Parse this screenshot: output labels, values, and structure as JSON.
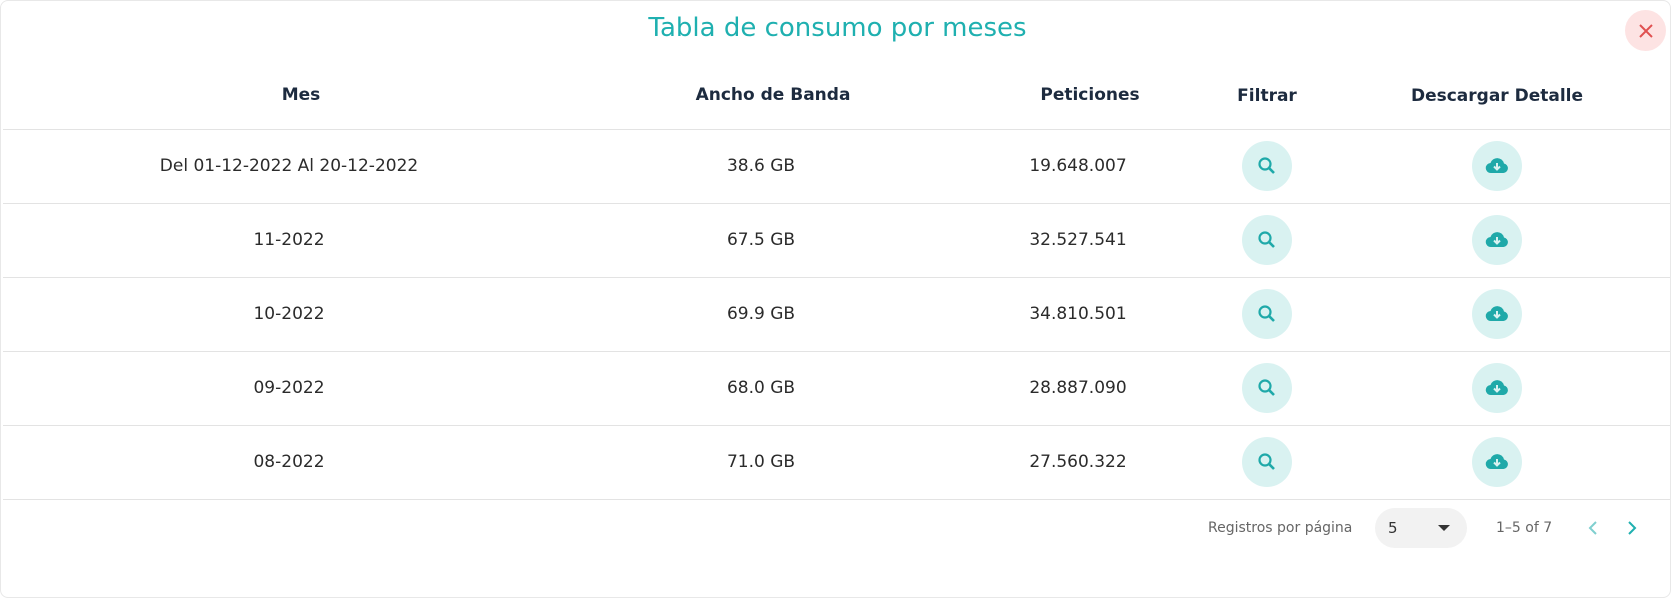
{
  "title": "Tabla de consumo por meses",
  "table": {
    "headers": [
      "Mes",
      "Ancho de Banda",
      "Peticiones",
      "Filtrar",
      "Descargar Detalle"
    ],
    "rows": [
      [
        "Del 01-12-2022 Al 20-12-2022",
        "38.6 GB",
        "19.648.007"
      ],
      [
        "11-2022",
        "67.5 GB",
        "32.527.541"
      ],
      [
        "10-2022",
        "69.9 GB",
        "34.810.501"
      ],
      [
        "09-2022",
        "68.0 GB",
        "28.887.090"
      ],
      [
        "08-2022",
        "71.0 GB",
        "27.560.322"
      ]
    ]
  },
  "pagination": {
    "rows_per_page_label": "Registros por página",
    "rows_per_page": "5",
    "range": "1–5 of 7"
  }
}
